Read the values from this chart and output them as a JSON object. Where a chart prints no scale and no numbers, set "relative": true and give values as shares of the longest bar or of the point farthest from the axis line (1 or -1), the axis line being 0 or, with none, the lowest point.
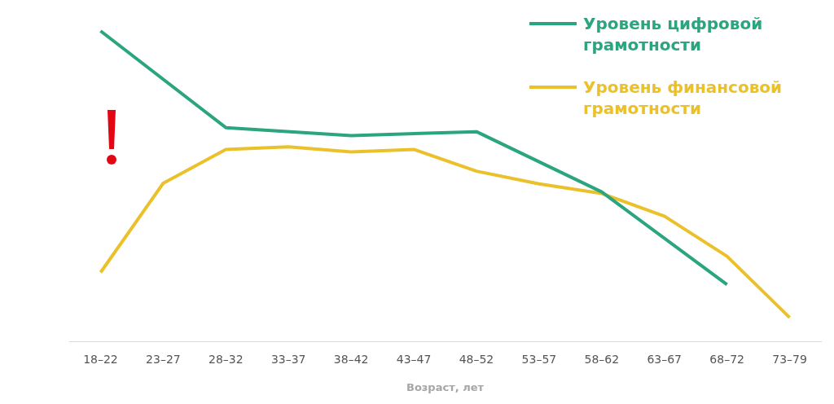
{
  "chart_data": {
    "type": "line",
    "relative": true,
    "xlabel": "Возраст, лет",
    "categories": [
      "18–22",
      "23–27",
      "28–32",
      "33–37",
      "38–42",
      "43–47",
      "48–52",
      "53–57",
      "58–62",
      "63–67",
      "68–72",
      "73–79"
    ],
    "series": [
      {
        "name": "Уровень цифровой грамотности",
        "color": "#2aa57f",
        "values": [
          1,
          null,
          0.689,
          null,
          0.663,
          null,
          0.676,
          null,
          0.482,
          null,
          0.184,
          null
        ]
      },
      {
        "name": "Уровень финансовой грамотности",
        "color": "#ebc12b",
        "values": [
          0.223,
          0.51,
          0.619,
          0.627,
          0.611,
          0.619,
          0.549,
          0.508,
          0.477,
          0.404,
          0.275,
          0.078
        ]
      }
    ],
    "legend": "top right",
    "grid": false,
    "marker": "none",
    "line_style": "solid"
  }
}
